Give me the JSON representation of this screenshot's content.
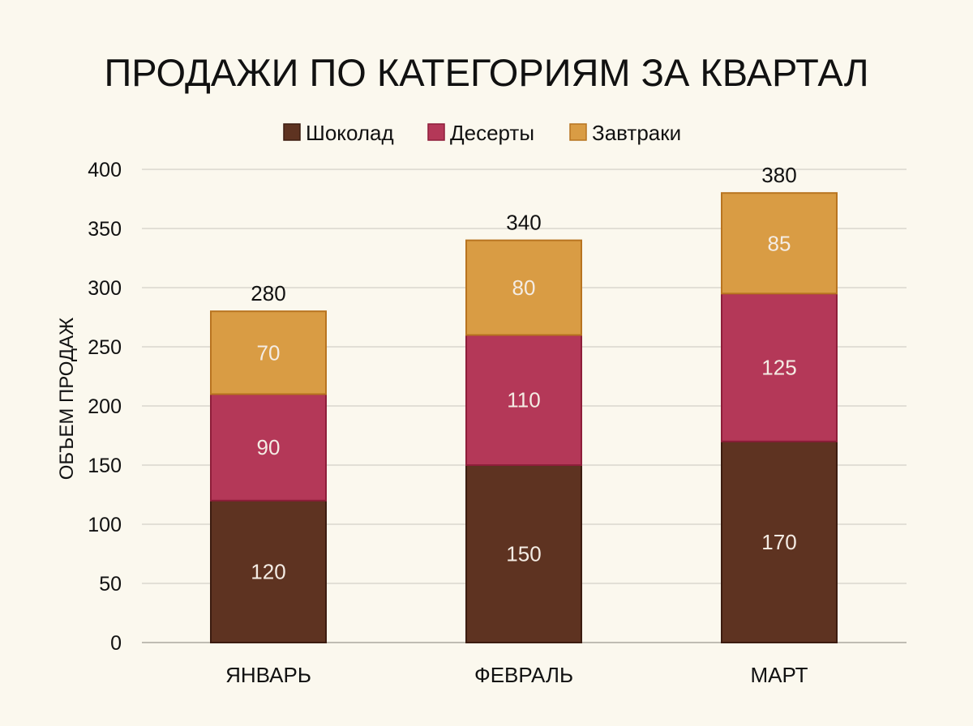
{
  "chart_data": {
    "type": "bar",
    "stacked": true,
    "title": "ПРОДАЖИ ПО КАТЕГОРИЯМ ЗА КВАРТАЛ",
    "xlabel": "",
    "ylabel": "ОБЪЕМ ПРОДАЖ",
    "categories": [
      "ЯНВАРЬ",
      "ФЕВРАЛЬ",
      "МАРТ"
    ],
    "series": [
      {
        "name": "Шоколад",
        "values": [
          120,
          150,
          170
        ],
        "color": "#5e3321",
        "border": "#3c1c10"
      },
      {
        "name": "Десерты",
        "values": [
          90,
          110,
          125
        ],
        "color": "#b43858",
        "border": "#8e1e3a"
      },
      {
        "name": "Завтраки",
        "values": [
          70,
          80,
          85
        ],
        "color": "#d99c44",
        "border": "#b87420"
      }
    ],
    "totals": [
      280,
      340,
      380
    ],
    "ylim": [
      0,
      400
    ],
    "yticks": [
      0,
      50,
      100,
      150,
      200,
      250,
      300,
      350,
      400
    ],
    "grid": true,
    "legend_position": "top-center"
  },
  "colors": {
    "background": "#fbf8ee",
    "grid": "#c9c6bd"
  }
}
